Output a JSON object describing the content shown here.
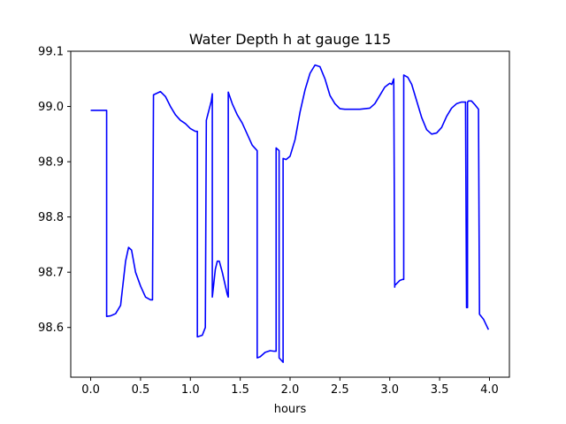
{
  "chart_data": {
    "type": "line",
    "title": "Water Depth h at gauge 115",
    "xlabel": "hours",
    "ylabel": "",
    "xlim": [
      -0.2,
      4.2
    ],
    "ylim": [
      98.51,
      99.1
    ],
    "xticks": [
      0.0,
      0.5,
      1.0,
      1.5,
      2.0,
      2.5,
      3.0,
      3.5,
      4.0
    ],
    "xtick_labels": [
      "0.0",
      "0.5",
      "1.0",
      "1.5",
      "2.0",
      "2.5",
      "3.0",
      "3.5",
      "4.0"
    ],
    "yticks": [
      98.6,
      98.7,
      98.8,
      98.9,
      99.0,
      99.1
    ],
    "ytick_labels": [
      "98.6",
      "98.7",
      "98.8",
      "98.9",
      "99.0",
      "99.1"
    ],
    "grid": false,
    "series": [
      {
        "color": "#0000ff",
        "x": [
          0.0,
          0.16,
          0.16,
          0.2,
          0.25,
          0.3,
          0.35,
          0.38,
          0.41,
          0.45,
          0.5,
          0.55,
          0.6,
          0.62,
          0.63,
          0.7,
          0.75,
          0.8,
          0.85,
          0.9,
          0.95,
          1.0,
          1.05,
          1.07,
          1.07,
          1.12,
          1.15,
          1.16,
          1.21,
          1.22,
          1.22,
          1.25,
          1.27,
          1.29,
          1.32,
          1.37,
          1.38,
          1.38,
          1.42,
          1.47,
          1.52,
          1.57,
          1.62,
          1.67,
          1.67,
          1.7,
          1.75,
          1.8,
          1.84,
          1.86,
          1.86,
          1.89,
          1.89,
          1.93,
          1.93,
          1.96,
          2.0,
          2.05,
          2.1,
          2.15,
          2.2,
          2.25,
          2.3,
          2.35,
          2.4,
          2.45,
          2.5,
          2.55,
          2.6,
          2.7,
          2.8,
          2.85,
          2.9,
          2.95,
          3.0,
          3.02,
          3.04,
          3.05,
          3.05,
          3.1,
          3.13,
          3.14,
          3.14,
          3.18,
          3.22,
          3.27,
          3.32,
          3.37,
          3.42,
          3.47,
          3.52,
          3.57,
          3.62,
          3.67,
          3.72,
          3.76,
          3.77,
          3.78,
          3.78,
          3.79,
          3.82,
          3.85,
          3.89,
          3.9,
          3.94,
          3.99
        ],
        "y": [
          98.993,
          98.993,
          98.62,
          98.621,
          98.625,
          98.64,
          98.72,
          98.745,
          98.74,
          98.7,
          98.675,
          98.655,
          98.65,
          98.65,
          99.021,
          99.027,
          99.018,
          99.0,
          98.985,
          98.975,
          98.969,
          98.96,
          98.955,
          98.955,
          98.583,
          98.586,
          98.6,
          98.975,
          99.01,
          99.023,
          98.655,
          98.705,
          98.72,
          98.72,
          98.7,
          98.66,
          98.655,
          99.026,
          99.005,
          98.985,
          98.97,
          98.95,
          98.93,
          98.92,
          98.545,
          98.547,
          98.555,
          98.558,
          98.557,
          98.557,
          98.925,
          98.92,
          98.545,
          98.537,
          98.906,
          98.904,
          98.91,
          98.94,
          98.99,
          99.03,
          99.06,
          99.075,
          99.072,
          99.05,
          99.02,
          99.005,
          98.996,
          98.995,
          98.995,
          98.995,
          98.997,
          99.005,
          99.02,
          99.035,
          99.042,
          99.04,
          99.05,
          98.673,
          98.676,
          98.685,
          98.687,
          98.687,
          99.057,
          99.053,
          99.04,
          99.01,
          98.98,
          98.958,
          98.95,
          98.952,
          98.962,
          98.982,
          98.997,
          99.005,
          99.008,
          99.008,
          98.636,
          98.636,
          99.008,
          99.01,
          99.01,
          99.004,
          98.995,
          98.624,
          98.615,
          98.596
        ]
      }
    ]
  }
}
